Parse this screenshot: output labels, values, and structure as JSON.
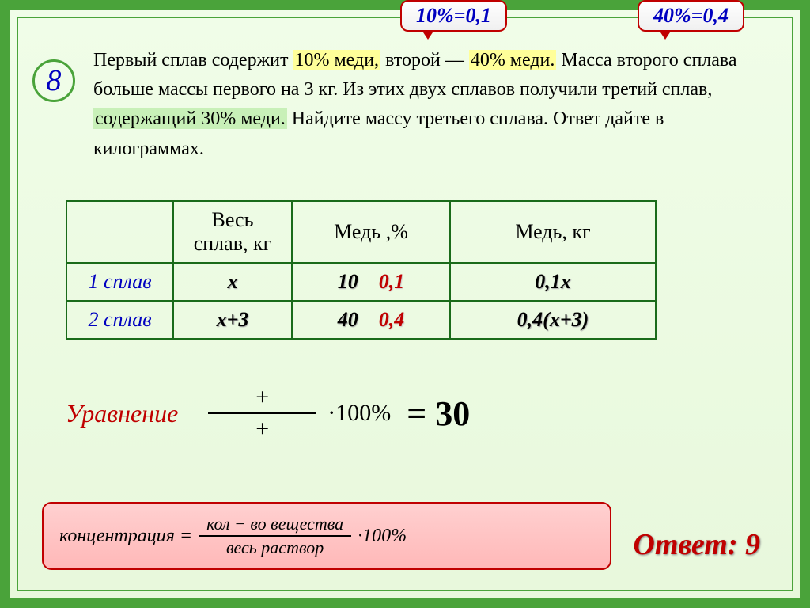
{
  "callouts": {
    "left": "10%=0,1",
    "right": "40%=0,4"
  },
  "problem": {
    "number": "8",
    "text_pre1": "Первый сплав содержит ",
    "hl1": "10% меди,",
    "text_mid1": " второй   — ",
    "hl2": "40% меди.",
    "line2": " Масса второго сплава больше массы первого на 3 кг. Из этих двух сплавов получили третий сплав, ",
    "hl3": "содержащий 30% меди.",
    "line3": " Найдите массу третьего сплава. Ответ дайте в килограммах."
  },
  "table": {
    "headers": {
      "c1": "",
      "c2": "Весь сплав, кг",
      "c3": "Медь ,%",
      "c4": "Медь, кг"
    },
    "rows": [
      {
        "label": "1 сплав",
        "mass": "х",
        "pct_black": "10",
        "pct_red": "0,1",
        "kg": "0,1х"
      },
      {
        "label": "2 сплав",
        "mass": "х+3",
        "pct_black": "40",
        "pct_red": "0,4",
        "kg": "0,4(х+3)"
      }
    ]
  },
  "equation": {
    "label": "Уравнение",
    "num": "+",
    "den": "+",
    "mult": "·100%",
    "result": "= 30"
  },
  "formula": {
    "lhs": "концентрация  =",
    "num": "кол − во  вещества",
    "den": "весь  раствор",
    "mult": "·100%"
  },
  "answer": "Ответ: 9"
}
